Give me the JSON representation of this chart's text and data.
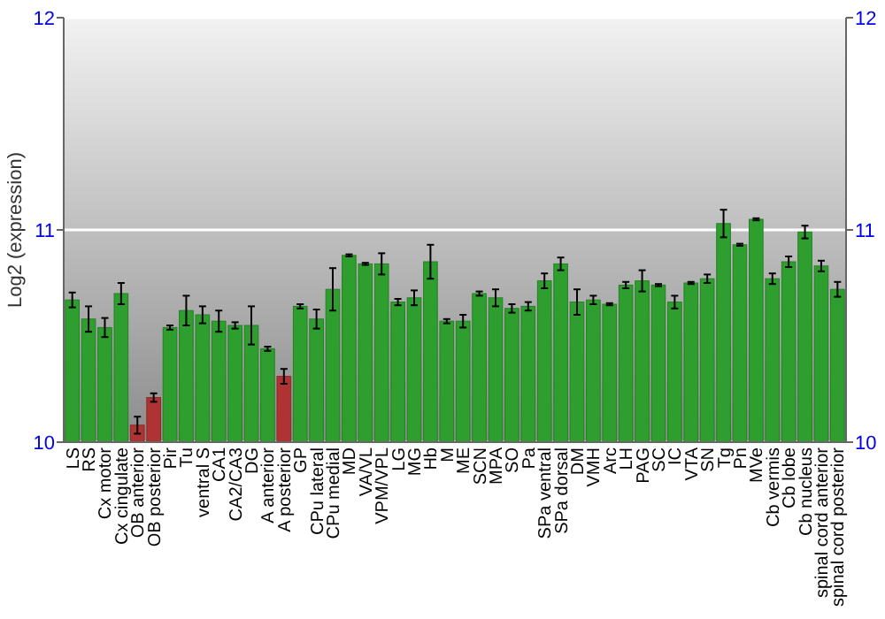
{
  "chart_data": {
    "type": "bar",
    "ylabel": "Log2 (expression)",
    "categories": [
      "LS",
      "RS",
      "Cx motor",
      "Cx cingulate",
      "OB anterior",
      "OB posterior",
      "Pir",
      "Tu",
      "ventral S",
      "CA1",
      "CA2/CA3",
      "DG",
      "A anterior",
      "A posterior",
      "GP",
      "CPu lateral",
      "CPu medial",
      "MD",
      "VA/VL",
      "VPM/VPL",
      "LG",
      "MG",
      "Hb",
      "M",
      "ME",
      "SCN",
      "MPA",
      "SO",
      "Pa",
      "SPa ventral",
      "SPa dorsal",
      "DM",
      "VMH",
      "Arc",
      "LH",
      "PAG",
      "SC",
      "IC",
      "VTA",
      "SN",
      "Tg",
      "Pn",
      "MVe",
      "Cb vermis",
      "Cb lobe",
      "Cb nucleus",
      "spinal cord anterior",
      "spinal cord posterior"
    ],
    "values": [
      10.67,
      10.58,
      10.54,
      10.7,
      10.08,
      10.21,
      10.54,
      10.62,
      10.6,
      10.57,
      10.55,
      10.55,
      10.44,
      10.31,
      10.64,
      10.58,
      10.72,
      10.88,
      10.84,
      10.84,
      10.66,
      10.68,
      10.85,
      10.57,
      10.57,
      10.7,
      10.68,
      10.63,
      10.64,
      10.76,
      10.84,
      10.66,
      10.67,
      10.65,
      10.74,
      10.76,
      10.74,
      10.66,
      10.75,
      10.77,
      11.03,
      10.93,
      11.05,
      10.77,
      10.85,
      10.99,
      10.83,
      10.72
    ],
    "errors": [
      0.035,
      0.06,
      0.045,
      0.05,
      0.04,
      0.02,
      0.01,
      0.07,
      0.04,
      0.05,
      0.015,
      0.09,
      0.01,
      0.035,
      0.01,
      0.045,
      0.1,
      0.005,
      0.005,
      0.05,
      0.015,
      0.035,
      0.08,
      0.01,
      0.03,
      0.01,
      0.04,
      0.02,
      0.02,
      0.035,
      0.03,
      0.06,
      0.02,
      0.005,
      0.015,
      0.05,
      0.005,
      0.03,
      0.005,
      0.02,
      0.065,
      0.005,
      0.005,
      0.025,
      0.025,
      0.03,
      0.025,
      0.035
    ],
    "colors": [
      "#2e9e2e",
      "#2e9e2e",
      "#2e9e2e",
      "#2e9e2e",
      "#b03333",
      "#b03333",
      "#2e9e2e",
      "#2e9e2e",
      "#2e9e2e",
      "#2e9e2e",
      "#2e9e2e",
      "#2e9e2e",
      "#2e9e2e",
      "#b03333",
      "#2e9e2e",
      "#2e9e2e",
      "#2e9e2e",
      "#2e9e2e",
      "#2e9e2e",
      "#2e9e2e",
      "#2e9e2e",
      "#2e9e2e",
      "#2e9e2e",
      "#2e9e2e",
      "#2e9e2e",
      "#2e9e2e",
      "#2e9e2e",
      "#2e9e2e",
      "#2e9e2e",
      "#2e9e2e",
      "#2e9e2e",
      "#2e9e2e",
      "#2e9e2e",
      "#2e9e2e",
      "#2e9e2e",
      "#2e9e2e",
      "#2e9e2e",
      "#2e9e2e",
      "#2e9e2e",
      "#2e9e2e",
      "#2e9e2e",
      "#2e9e2e",
      "#2e9e2e",
      "#2e9e2e",
      "#2e9e2e",
      "#2e9e2e",
      "#2e9e2e",
      "#2e9e2e"
    ],
    "ylim": [
      10,
      12
    ],
    "yticks": [
      10,
      11,
      12
    ],
    "y2lim": [
      10,
      12
    ],
    "y2ticks": [
      10,
      11,
      12
    ],
    "grid": "y"
  }
}
